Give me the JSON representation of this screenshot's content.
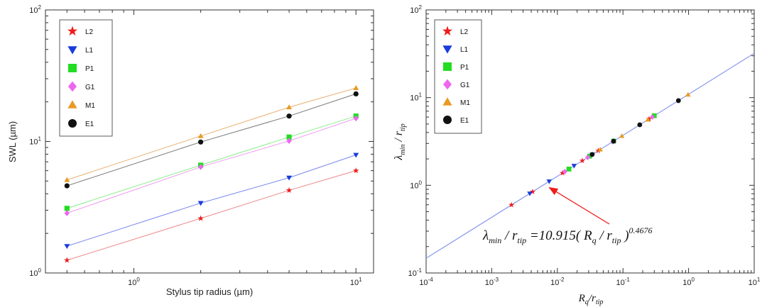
{
  "chart_data": [
    {
      "type": "line",
      "scale": "log-log",
      "xlabel": "Stylus tip radius (µm)",
      "ylabel": "SWL (µm)",
      "xlim": [
        0.4,
        12
      ],
      "ylim": [
        1,
        100
      ],
      "x_ticks": [
        {
          "v": 1,
          "b": "10",
          "e": "0"
        },
        {
          "v": 10,
          "b": "10",
          "e": "1"
        }
      ],
      "y_ticks": [
        {
          "v": 1,
          "b": "10",
          "e": "0"
        },
        {
          "v": 10,
          "b": "10",
          "e": "1"
        },
        {
          "v": 100,
          "b": "10",
          "e": "2"
        }
      ],
      "x": [
        0.5,
        2,
        5,
        10
      ],
      "series": [
        {
          "name": "L2",
          "marker": "star",
          "color": "#ee1c1c",
          "values": [
            1.25,
            2.6,
            4.25,
            6.0
          ]
        },
        {
          "name": "L1",
          "marker": "triangle-down",
          "color": "#1a3cdc",
          "values": [
            1.6,
            3.4,
            5.3,
            7.9
          ]
        },
        {
          "name": "P1",
          "marker": "square",
          "color": "#22dd22",
          "values": [
            3.1,
            6.6,
            10.8,
            15.6
          ]
        },
        {
          "name": "G1",
          "marker": "diamond",
          "color": "#ee66ee",
          "values": [
            2.85,
            6.4,
            10.1,
            15.0
          ]
        },
        {
          "name": "M1",
          "marker": "triangle-up",
          "color": "#e89a22",
          "values": [
            5.1,
            11.0,
            18.2,
            25.5
          ]
        },
        {
          "name": "E1",
          "marker": "circle",
          "color": "#111111",
          "values": [
            4.6,
            9.9,
            15.6,
            23.0
          ]
        }
      ],
      "line_colors": {
        "L2": "#ee8888",
        "L1": "#7788ee",
        "P1": "#88ee88",
        "G1": "#ee99ee",
        "M1": "#e8b070",
        "E1": "#777777"
      },
      "legend": "top-left"
    },
    {
      "type": "scatter",
      "scale": "log-log",
      "xlabel": {
        "base": "R",
        "sub1": "q",
        "slash": "/r",
        "sub2": "tip"
      },
      "ylabel": {
        "base": "λ",
        "sub1": "min",
        "slash": " / r",
        "sub2": "tip"
      },
      "xlim": [
        0.0001,
        10
      ],
      "ylim": [
        0.1,
        100
      ],
      "x_ticks": [
        {
          "v": 0.0001,
          "b": "10",
          "e": "-4"
        },
        {
          "v": 0.001,
          "b": "10",
          "e": "-3"
        },
        {
          "v": 0.01,
          "b": "10",
          "e": "-2"
        },
        {
          "v": 0.1,
          "b": "10",
          "e": "-1"
        },
        {
          "v": 1,
          "b": "10",
          "e": "0"
        },
        {
          "v": 10,
          "b": "10",
          "e": "1"
        }
      ],
      "y_ticks": [
        {
          "v": 0.1,
          "b": "10",
          "e": "-1"
        },
        {
          "v": 1,
          "b": "10",
          "e": "0"
        },
        {
          "v": 10,
          "b": "10",
          "e": "1"
        },
        {
          "v": 100,
          "b": "10",
          "e": "2"
        }
      ],
      "fit": {
        "a": 10.915,
        "b": 0.4676,
        "color": "#8899ee"
      },
      "series": [
        {
          "name": "L2",
          "marker": "star",
          "color": "#ee1c1c",
          "x": [
            0.002,
            0.0042,
            0.012,
            0.024,
            0.042,
            0.25
          ]
        },
        {
          "name": "L1",
          "marker": "triangle-down",
          "color": "#1a3cdc",
          "x": [
            0.0038,
            0.0075,
            0.018,
            0.034
          ]
        },
        {
          "name": "P1",
          "marker": "square",
          "color": "#22dd22",
          "x": [
            0.015,
            0.031,
            0.072,
            0.3
          ]
        },
        {
          "name": "G1",
          "marker": "diamond",
          "color": "#ee66ee",
          "x": [
            0.013,
            0.029,
            0.07,
            0.28
          ]
        },
        {
          "name": "M1",
          "marker": "triangle-up",
          "color": "#e89a22",
          "x": [
            0.045,
            0.096,
            0.24,
            0.98
          ]
        },
        {
          "name": "E1",
          "marker": "circle",
          "color": "#111111",
          "x": [
            0.034,
            0.072,
            0.18,
            0.7
          ]
        }
      ],
      "annotation": {
        "text": {
          "lhs": "λ",
          "lhs_sub": "min",
          "mid": " / r",
          "mid_sub": "tip",
          "eq": " =10.915( R",
          "r_sub": "q",
          "div": " / r",
          "div_sub": "tip",
          "close": " )",
          "exp": "0.4676"
        },
        "arrow_from_x": 0.007
      },
      "legend": "top-left"
    }
  ]
}
